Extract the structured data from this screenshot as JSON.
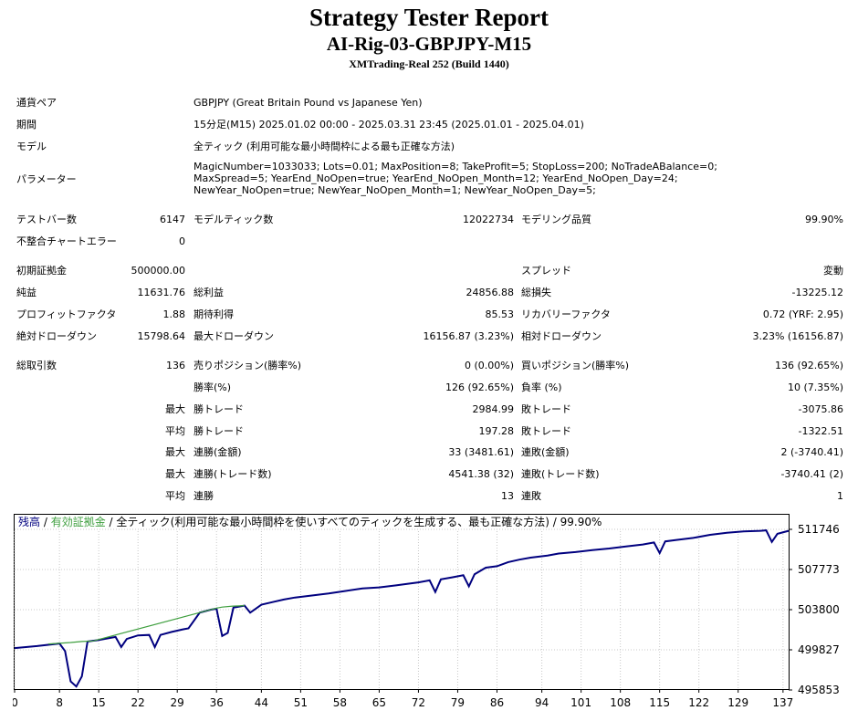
{
  "header": {
    "title": "Strategy Tester Report",
    "subtitle": "AI-Rig-03-GBPJPY-M15",
    "build": "XMTrading-Real 252 (Build 1440)"
  },
  "info": {
    "symbol_label": "通貨ペア",
    "symbol_value": "GBPJPY (Great Britain Pound vs Japanese Yen)",
    "period_label": "期間",
    "period_value": "15分足(M15) 2025.01.02 00:00 - 2025.03.31 23:45 (2025.01.01 - 2025.04.01)",
    "model_label": "モデル",
    "model_value": "全ティック (利用可能な最小時間枠による最も正確な方法)",
    "params_label": "パラメーター",
    "params_value": "MagicNumber=1033033; Lots=0.01; MaxPosition=8; TakeProfit=5; StopLoss=200; NoTradeABalance=0; MaxSpread=5; YearEnd_NoOpen=true; YearEnd_NoOpen_Month=12; YearEnd_NoOpen_Day=24; NewYear_NoOpen=true; NewYear_NoOpen_Month=1; NewYear_NoOpen_Day=5;"
  },
  "stats": {
    "bars_label": "テストバー数",
    "bars_value": "6147",
    "ticks_label": "モデルティック数",
    "ticks_value": "12022734",
    "quality_label": "モデリング品質",
    "quality_value": "99.90%",
    "mismatch_label": "不整合チャートエラー",
    "mismatch_value": "0",
    "deposit_label": "初期証拠金",
    "deposit_value": "500000.00",
    "spread_label": "スプレッド",
    "spread_value": "変動",
    "net_label": "純益",
    "net_value": "11631.76",
    "gross_profit_label": "総利益",
    "gross_profit_value": "24856.88",
    "gross_loss_label": "総損失",
    "gross_loss_value": "-13225.12",
    "pf_label": "プロフィットファクタ",
    "pf_value": "1.88",
    "expected_label": "期待利得",
    "expected_value": "85.53",
    "recovery_label": "リカバリーファクタ",
    "recovery_value": "0.72 (YRF: 2.95)",
    "abs_dd_label": "絶対ドローダウン",
    "abs_dd_value": "15798.64",
    "max_dd_label": "最大ドローダウン",
    "max_dd_value": "16156.87 (3.23%)",
    "rel_dd_label": "相対ドローダウン",
    "rel_dd_value": "3.23% (16156.87)",
    "trades_label": "総取引数",
    "trades_value": "136",
    "short_label": "売りポジション(勝率%)",
    "short_value": "0 (0.00%)",
    "long_label": "買いポジション(勝率%)",
    "long_value": "136 (92.65%)",
    "win_rate_label": "勝率(%)",
    "win_rate_value": "126 (92.65%)",
    "loss_rate_label": "負率 (%)",
    "loss_rate_value": "10 (7.35%)",
    "max_word": "最大",
    "avg_word": "平均",
    "largest_win_label": "勝トレード",
    "largest_win_value": "2984.99",
    "largest_loss_label": "敗トレード",
    "largest_loss_value": "-3075.86",
    "avg_win_label": "勝トレード",
    "avg_win_value": "197.28",
    "avg_loss_label": "敗トレード",
    "avg_loss_value": "-1322.51",
    "cons_wins_money_label": "連勝(金額)",
    "cons_wins_money_value": "33 (3481.61)",
    "cons_loss_money_label": "連敗(金額)",
    "cons_loss_money_value": "2 (-3740.41)",
    "cons_wins_count_label": "連勝(トレード数)",
    "cons_wins_count_value": "4541.38 (32)",
    "cons_loss_count_label": "連敗(トレード数)",
    "cons_loss_count_value": "-3740.41 (2)",
    "avg_cons_wins_label": "連勝",
    "avg_cons_wins_value": "13",
    "avg_cons_loss_label": "連敗",
    "avg_cons_loss_value": "1"
  },
  "chart_legend": {
    "balance": "残高",
    "sep1": " / ",
    "equity": "有効証拠金",
    "rest": " / 全ティック(利用可能な最小時間枠を使いすべてのティックを生成する、最も正確な方法) / 99.90%"
  },
  "colors": {
    "balance": "#00007f",
    "equity": "#3f9f3f",
    "grid": "#c8c8c8"
  },
  "chart_data": {
    "type": "line",
    "x_ticks": [
      0,
      8,
      15,
      22,
      29,
      36,
      44,
      51,
      58,
      65,
      72,
      79,
      86,
      94,
      101,
      108,
      115,
      122,
      129,
      137
    ],
    "y_ticks": [
      495853,
      499827,
      503800,
      507773,
      511746
    ],
    "xlim": [
      0,
      138
    ],
    "ylim": [
      495853,
      511746
    ],
    "grid": true,
    "series": [
      {
        "name": "残高",
        "x": [
          0,
          4,
          8,
          9,
          10,
          11,
          12,
          13,
          15,
          18,
          19,
          20,
          22,
          24,
          25,
          26,
          28,
          30,
          31,
          33,
          35,
          36,
          37,
          38,
          39,
          41,
          42,
          44,
          46,
          48,
          50,
          53,
          56,
          59,
          62,
          65,
          68,
          70,
          72,
          74,
          75,
          76,
          78,
          80,
          81,
          82,
          84,
          86,
          88,
          90,
          92,
          95,
          97,
          100,
          103,
          106,
          109,
          112,
          114,
          115,
          116,
          118,
          121,
          124,
          127,
          130,
          133,
          134,
          135,
          136,
          138
        ],
        "y": [
          500000,
          500200,
          500450,
          499700,
          496700,
          496200,
          497200,
          500650,
          500800,
          501100,
          500100,
          500900,
          501250,
          501300,
          500100,
          501300,
          501600,
          501850,
          501950,
          503500,
          503800,
          503900,
          501200,
          501500,
          504000,
          504200,
          503500,
          504300,
          504550,
          504800,
          505000,
          505200,
          505400,
          505650,
          505900,
          506000,
          506200,
          506350,
          506500,
          506700,
          505550,
          506800,
          507000,
          507200,
          506100,
          507300,
          507950,
          508100,
          508500,
          508750,
          508950,
          509150,
          509350,
          509500,
          509700,
          509850,
          510050,
          510250,
          510450,
          509400,
          510550,
          510700,
          510900,
          511200,
          511400,
          511550,
          511600,
          511650,
          510500,
          511300,
          511600
        ]
      },
      {
        "name": "有効証拠金",
        "x": [
          6,
          10,
          12,
          14,
          36,
          37,
          39,
          41
        ],
        "y": [
          500400,
          500550,
          500650,
          500700,
          503950,
          504050,
          504150,
          504200
        ]
      }
    ]
  }
}
